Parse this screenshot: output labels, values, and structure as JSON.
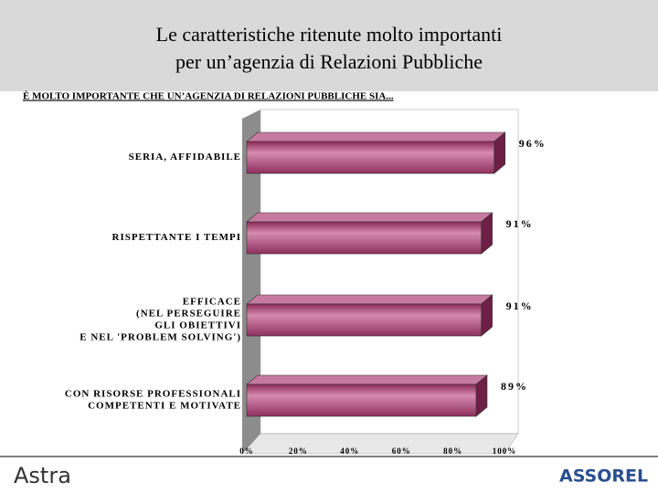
{
  "chart_data": {
    "type": "bar",
    "orientation": "horizontal",
    "title": [
      "Le caratteristiche ritenute molto importanti",
      "per un’agenzia di Relazioni Pubbliche"
    ],
    "subtitle": "È MOLTO IMPORTANTE CHE UN’AGENZIA DI RELAZIONI PUBBLICHE SIA...",
    "categories": [
      [
        "SERIA, AFFIDABILE"
      ],
      [
        "RISPETTANTE I TEMPI"
      ],
      [
        "EFFICACE",
        "(NEL PERSEGUIRE",
        "GLI OBIETTIVI",
        "E NEL 'PROBLEM SOLVING')"
      ],
      [
        "CON RISORSE PROFESSIONALI",
        "COMPETENTI E MOTIVATE"
      ]
    ],
    "values": [
      96,
      91,
      91,
      89
    ],
    "value_labels": [
      "96%",
      "91%",
      "91%",
      "89%"
    ],
    "color": "#b04a78",
    "xlim": [
      0,
      100
    ],
    "xticks": [
      {
        "value": 0,
        "label": "0%"
      },
      {
        "value": 20,
        "label": "20%"
      },
      {
        "value": 40,
        "label": "40%"
      },
      {
        "value": 60,
        "label": "60%"
      },
      {
        "value": 80,
        "label": "80%"
      },
      {
        "value": 100,
        "label": "100%"
      }
    ],
    "grid": false
  },
  "footer": {
    "left_logo": "Astra",
    "right_logo": "ASSOREL"
  }
}
